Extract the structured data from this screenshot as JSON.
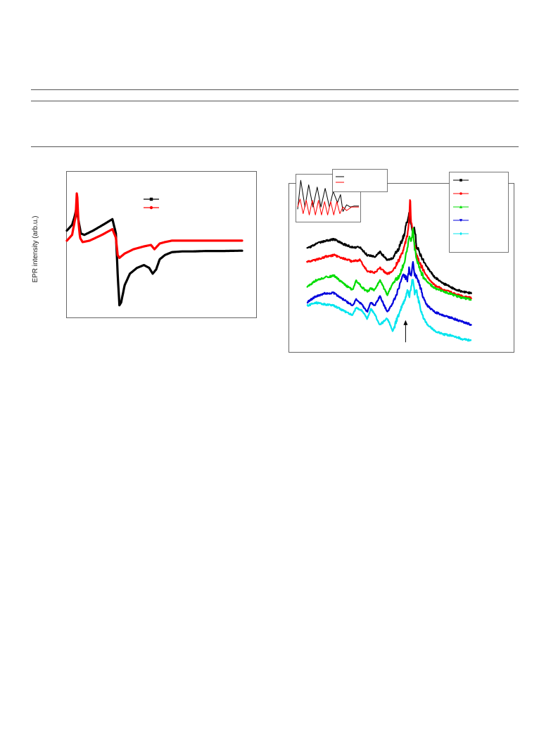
{
  "page": {
    "rules": [
      "top-rule",
      "middle-rule",
      "bottom-rule"
    ]
  },
  "chart_data": [
    {
      "type": "line",
      "title": "",
      "xlabel": "",
      "ylabel": "EPR intensity (arb.u.)",
      "xlim": [
        0,
        100
      ],
      "ylim": [
        0,
        100
      ],
      "grid": false,
      "legend_position": "top-center",
      "series": [
        {
          "color": "#000000",
          "marker": "square",
          "x": [
            0,
            3,
            4.5,
            5.5,
            6.5,
            8,
            10,
            15,
            22,
            26,
            28,
            29,
            30,
            31,
            33,
            36,
            40,
            44,
            47,
            49,
            51,
            53,
            56,
            60,
            66,
            72,
            80,
            90,
            100
          ],
          "y": [
            60,
            64,
            70,
            76,
            68,
            58,
            57,
            60,
            65,
            68,
            58,
            30,
            8,
            10,
            22,
            30,
            34,
            36,
            34,
            30,
            33,
            40,
            43,
            45,
            45.5,
            45.5,
            45.8,
            45.8,
            46
          ]
        },
        {
          "color": "#ff0000",
          "marker": "circle",
          "x": [
            0,
            3,
            5,
            5.8,
            6.5,
            7.5,
            9,
            13,
            20,
            26,
            28,
            29,
            30,
            33,
            38,
            44,
            48,
            50,
            53,
            56,
            60,
            70,
            80,
            90,
            100
          ],
          "y": [
            53,
            57,
            70,
            89,
            68,
            55,
            52,
            53,
            57,
            61,
            55,
            43,
            41,
            44,
            47,
            49,
            50,
            47,
            51,
            52,
            53,
            53,
            53,
            53,
            53
          ]
        }
      ]
    },
    {
      "type": "line",
      "title": "",
      "xlabel": "",
      "ylabel": "",
      "xlim": [
        0,
        100
      ],
      "ylim": [
        0,
        100
      ],
      "grid": false,
      "legend_position": "top-right",
      "series": [
        {
          "color": "#000000",
          "marker": "square",
          "x": [
            0,
            5,
            10,
            15,
            20,
            25,
            29,
            33,
            37,
            40,
            44,
            47,
            50,
            53,
            55,
            56,
            57,
            58,
            59,
            60,
            62,
            64,
            66,
            70,
            75,
            80,
            85,
            90
          ],
          "y": [
            62,
            65,
            67,
            68,
            65,
            63,
            63,
            58,
            57,
            60,
            55,
            56,
            62,
            70,
            80,
            84,
            78,
            72,
            75,
            64,
            58,
            54,
            50,
            44,
            40,
            37,
            35,
            34
          ]
        },
        {
          "color": "#ff0000",
          "marker": "circle",
          "x": [
            0,
            5,
            10,
            15,
            20,
            25,
            29,
            33,
            37,
            40,
            44,
            47,
            50,
            53,
            55,
            56,
            56.5,
            57,
            58,
            59,
            60,
            62,
            64,
            66,
            70,
            75,
            80,
            85,
            90
          ],
          "y": [
            54,
            55,
            57,
            58,
            56,
            54,
            55,
            48,
            47,
            50,
            46,
            48,
            54,
            62,
            70,
            80,
            96,
            78,
            74,
            64,
            58,
            52,
            48,
            44,
            39,
            36,
            34,
            32,
            31
          ]
        },
        {
          "color": "#00dd00",
          "marker": "triangle-up",
          "x": [
            0,
            5,
            10,
            15,
            20,
            25,
            27,
            30,
            33,
            35,
            37,
            40,
            44,
            47,
            50,
            53,
            55,
            56,
            57,
            58,
            59,
            60,
            62,
            64,
            66,
            70,
            75,
            80,
            85,
            90
          ],
          "y": [
            38,
            42,
            44,
            45,
            40,
            36,
            42,
            38,
            35,
            37,
            36,
            42,
            33,
            40,
            44,
            52,
            62,
            70,
            66,
            74,
            62,
            56,
            48,
            44,
            41,
            37,
            35,
            33,
            31,
            30
          ]
        },
        {
          "color": "#0000dd",
          "marker": "triangle-down",
          "x": [
            0,
            5,
            10,
            15,
            20,
            25,
            27,
            30,
            33,
            35,
            37,
            40,
            44,
            47,
            50,
            53,
            55,
            56,
            57,
            58,
            59,
            60,
            62,
            64,
            66,
            70,
            75,
            80,
            85,
            90
          ],
          "y": [
            28,
            32,
            34,
            34,
            30,
            26,
            30,
            27,
            22,
            28,
            26,
            32,
            22,
            28,
            36,
            46,
            42,
            50,
            44,
            54,
            46,
            44,
            38,
            30,
            26,
            22,
            20,
            18,
            16,
            14
          ]
        },
        {
          "color": "#00e5ee",
          "marker": "diamond",
          "x": [
            0,
            5,
            10,
            15,
            20,
            25,
            27,
            30,
            33,
            35,
            37,
            40,
            44,
            47,
            50,
            53,
            55,
            56,
            57,
            58,
            59,
            60,
            62,
            64,
            66,
            70,
            75,
            80,
            85,
            90
          ],
          "y": [
            26,
            28,
            27,
            26,
            23,
            20,
            25,
            23,
            18,
            24,
            21,
            14,
            18,
            10,
            20,
            28,
            36,
            32,
            38,
            44,
            34,
            36,
            24,
            18,
            14,
            10,
            8,
            7,
            5,
            4
          ]
        }
      ],
      "annotations": [
        {
          "type": "arrow",
          "x": 54,
          "y_from": 3,
          "y_to": 17
        }
      ],
      "inset": {
        "type": "line",
        "series": [
          {
            "color": "#000000",
            "x": [
              0,
              0.05,
              0.12,
              0.18,
              0.25,
              0.32,
              0.38,
              0.45,
              0.52,
              0.58,
              0.65,
              0.7,
              0.74,
              0.8,
              0.86,
              0.92,
              1
            ],
            "y": [
              0.25,
              0.9,
              0.3,
              0.8,
              0.3,
              0.75,
              0.3,
              0.72,
              0.3,
              0.65,
              0.4,
              0.58,
              0.2,
              0.35,
              0.3,
              0.32,
              0.32
            ]
          },
          {
            "color": "#ff0000",
            "x": [
              0,
              0.04,
              0.09,
              0.14,
              0.19,
              0.24,
              0.29,
              0.34,
              0.39,
              0.44,
              0.49,
              0.54,
              0.59,
              0.64,
              0.69,
              0.74,
              0.8,
              0.88,
              1
            ],
            "y": [
              0.3,
              0.48,
              0.15,
              0.45,
              0.12,
              0.45,
              0.12,
              0.45,
              0.12,
              0.42,
              0.12,
              0.42,
              0.12,
              0.42,
              0.15,
              0.3,
              0.22,
              0.3,
              0.3
            ]
          }
        ]
      }
    }
  ]
}
